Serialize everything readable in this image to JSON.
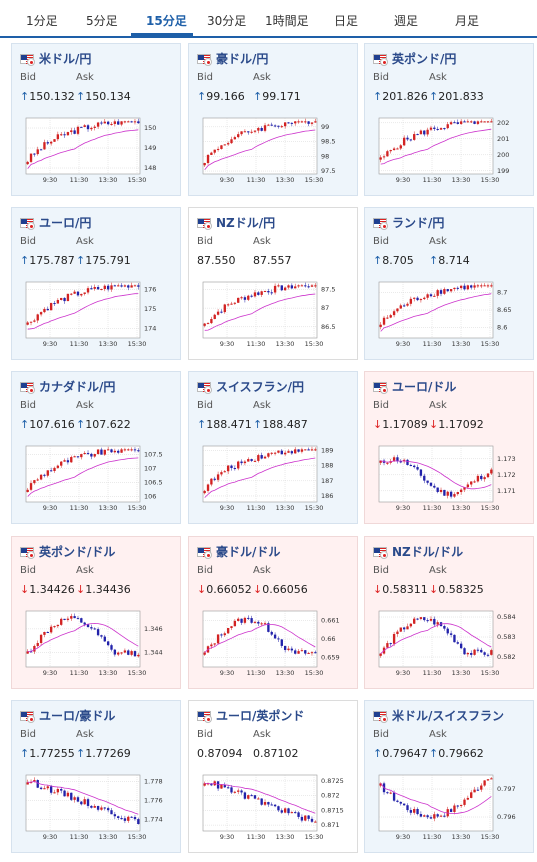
{
  "tabs": [
    {
      "label": "1分足",
      "active": false
    },
    {
      "label": "5分足",
      "active": false
    },
    {
      "label": "15分足",
      "active": true
    },
    {
      "label": "30分足",
      "active": false
    },
    {
      "label": "1時間足",
      "active": false
    },
    {
      "label": "日足",
      "active": false
    },
    {
      "label": "週足",
      "active": false
    },
    {
      "label": "月足",
      "active": false
    }
  ],
  "labels": {
    "bid": "Bid",
    "ask": "Ask"
  },
  "colors": {
    "up": "#1e5fa8",
    "down": "#d22222",
    "ma": "#cc33cc",
    "candle_up": "#d22222",
    "candle_down": "#2222aa"
  },
  "x_ticks": [
    "9:30",
    "11:30",
    "13:30",
    "15:30"
  ],
  "cards": [
    {
      "pair": "米ドル/円",
      "dir": "up",
      "bid": "150.132",
      "ask": "150.134",
      "flag": "us-jp",
      "y_ticks": [
        "150",
        "149",
        "148"
      ],
      "ylim": [
        147.7,
        150.5
      ],
      "trend": "rise"
    },
    {
      "pair": "豪ドル/円",
      "dir": "up",
      "bid": "99.166",
      "ask": "99.171",
      "flag": "au-jp",
      "y_ticks": [
        "99",
        "98.5",
        "98",
        "97.5"
      ],
      "ylim": [
        97.4,
        99.3
      ],
      "trend": "rise"
    },
    {
      "pair": "英ポンド/円",
      "dir": "up",
      "bid": "201.826",
      "ask": "201.833",
      "flag": "gb-jp",
      "y_ticks": [
        "202",
        "201",
        "200",
        "199"
      ],
      "ylim": [
        198.8,
        202.3
      ],
      "trend": "rise"
    },
    {
      "pair": "ユーロ/円",
      "dir": "up",
      "bid": "175.787",
      "ask": "175.791",
      "flag": "eu-jp",
      "y_ticks": [
        "176",
        "175",
        "174"
      ],
      "ylim": [
        173.5,
        176.4
      ],
      "trend": "rise"
    },
    {
      "pair": "NZドル/円",
      "dir": "neutral",
      "bid": "87.550",
      "ask": "87.557",
      "flag": "nz-jp",
      "y_ticks": [
        "87.5",
        "87",
        "86.5"
      ],
      "ylim": [
        86.2,
        87.7
      ],
      "trend": "rise"
    },
    {
      "pair": "ランド/円",
      "dir": "up",
      "bid": "8.705",
      "ask": "8.714",
      "flag": "za-jp",
      "y_ticks": [
        "8.7",
        "8.65",
        "8.6"
      ],
      "ylim": [
        8.57,
        8.73
      ],
      "trend": "rise"
    },
    {
      "pair": "カナダドル/円",
      "dir": "up",
      "bid": "107.616",
      "ask": "107.622",
      "flag": "ca-jp",
      "y_ticks": [
        "107.5",
        "107",
        "106.5",
        "106"
      ],
      "ylim": [
        105.8,
        107.8
      ],
      "trend": "rise"
    },
    {
      "pair": "スイスフラン/円",
      "dir": "up",
      "bid": "188.471",
      "ask": "188.487",
      "flag": "ch-jp",
      "y_ticks": [
        "189",
        "188",
        "187",
        "186"
      ],
      "ylim": [
        185.6,
        189.3
      ],
      "trend": "rise"
    },
    {
      "pair": "ユーロ/ドル",
      "dir": "down",
      "bid": "1.17089",
      "ask": "1.17092",
      "flag": "eu-us",
      "y_ticks": [
        "1.173",
        "1.172",
        "1.171"
      ],
      "ylim": [
        1.1703,
        1.1738
      ],
      "trend": "wave-down"
    },
    {
      "pair": "英ポンド/ドル",
      "dir": "down",
      "bid": "1.34426",
      "ask": "1.34436",
      "flag": "gb-us",
      "y_ticks": [
        "1.346",
        "1.344"
      ],
      "ylim": [
        1.3428,
        1.3475
      ],
      "trend": "hump"
    },
    {
      "pair": "豪ドル/ドル",
      "dir": "down",
      "bid": "0.66052",
      "ask": "0.66056",
      "flag": "au-us",
      "y_ticks": [
        "0.661",
        "0.66",
        "0.659"
      ],
      "ylim": [
        0.6585,
        0.6615
      ],
      "trend": "hump"
    },
    {
      "pair": "NZドル/ドル",
      "dir": "down",
      "bid": "0.58311",
      "ask": "0.58325",
      "flag": "nz-us",
      "y_ticks": [
        "0.584",
        "0.583",
        "0.582"
      ],
      "ylim": [
        0.5815,
        0.5843
      ],
      "trend": "hump"
    },
    {
      "pair": "ユーロ/豪ドル",
      "dir": "up",
      "bid": "1.77255",
      "ask": "1.77269",
      "flag": "eu-au",
      "y_ticks": [
        "1.778",
        "1.776",
        "1.774"
      ],
      "ylim": [
        1.7728,
        1.7787
      ],
      "trend": "fall"
    },
    {
      "pair": "ユーロ/英ポンド",
      "dir": "neutral",
      "bid": "0.87094",
      "ask": "0.87102",
      "flag": "eu-gb",
      "y_ticks": [
        "0.8725",
        "0.872",
        "0.8715",
        "0.871"
      ],
      "ylim": [
        0.8708,
        0.8727
      ],
      "trend": "fall"
    },
    {
      "pair": "米ドル/スイスフラン",
      "dir": "up",
      "bid": "0.79647",
      "ask": "0.79662",
      "flag": "us-ch",
      "y_ticks": [
        "0.797",
        "0.796"
      ],
      "ylim": [
        0.7955,
        0.7975
      ],
      "trend": "dip"
    }
  ]
}
